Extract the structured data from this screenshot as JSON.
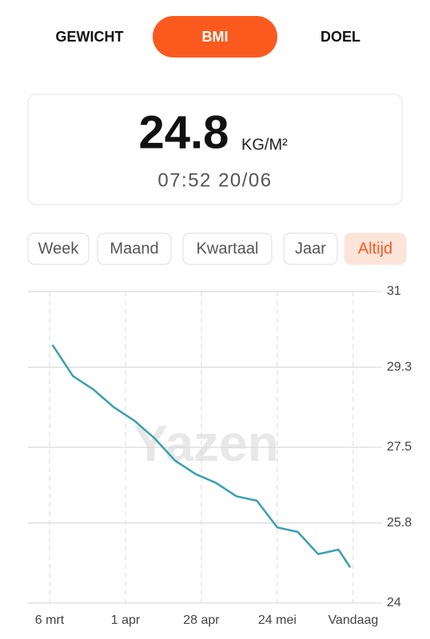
{
  "tabs": [
    "GEWICHT",
    "BMI",
    "DOEL"
  ],
  "active_tab": 1,
  "reading": {
    "value": "24.8",
    "unit": "KG/M²",
    "timestamp": "07:52 20/06"
  },
  "periods": [
    "Week",
    "Maand",
    "Kwartaal",
    "Jaar",
    "Altijd"
  ],
  "active_period": 4,
  "watermark": "Yazen",
  "chart_data": {
    "type": "line",
    "x": [
      1,
      8,
      15,
      22,
      29,
      36,
      43,
      50,
      57,
      64,
      71,
      78,
      85,
      92,
      99,
      103
    ],
    "series": [
      {
        "color": "#3aa1ad",
        "values": [
          29.8,
          29.1,
          28.8,
          28.4,
          28.1,
          27.7,
          27.2,
          26.9,
          26.7,
          26.4,
          26.3,
          25.7,
          25.6,
          25.1,
          25.2,
          24.8
        ]
      }
    ],
    "xlim": [
      -7.4,
      111.7
    ],
    "xticks": [
      {
        "value": 0,
        "label": "6 mrt"
      },
      {
        "value": 26,
        "label": "1 apr"
      },
      {
        "value": 52,
        "label": "28 apr"
      },
      {
        "value": 78,
        "label": "24 mei"
      },
      {
        "value": 104,
        "label": "Vandaag"
      }
    ],
    "ylim": [
      24,
      31
    ],
    "yticks": [
      24,
      25.8,
      27.5,
      29.3,
      31
    ],
    "grid": true
  }
}
